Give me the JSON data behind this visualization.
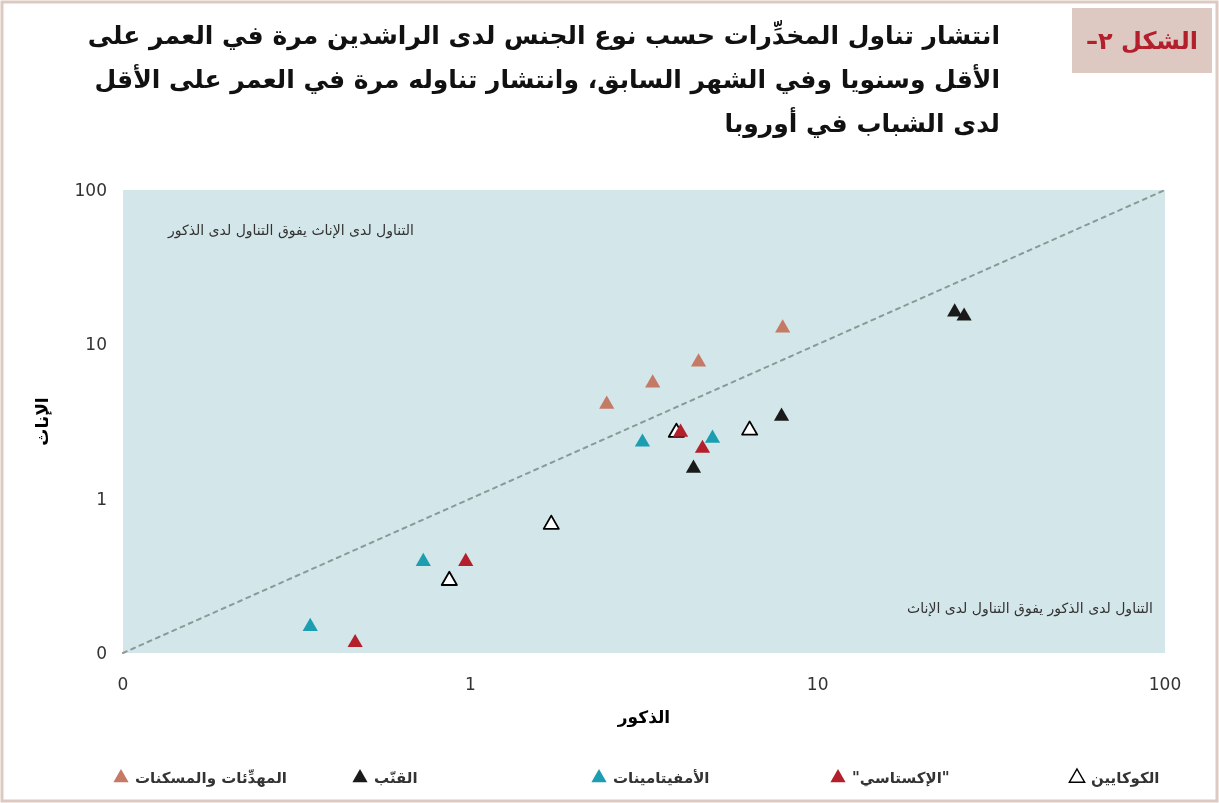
{
  "chart_data": {
    "type": "scatter",
    "title": "انتشار تناول المخدِّرات حسب نوع الجنس لدى الراشدين مرة في العمر على الأقل وسنويا وفي الشهر السابق، وانتشار تناوله مرة في العمر على الأقل لدى الشباب في أوروبا",
    "xlabel": "الذكور",
    "ylabel": "الإناث",
    "log": "xy",
    "marker": "triangle",
    "legend": "bottom",
    "grid": false,
    "xlim": [
      0.1,
      100
    ],
    "ylim": [
      0.1,
      100
    ],
    "xticks": [
      {
        "value": 0.1,
        "label": "0"
      },
      1,
      10,
      100
    ],
    "yticks": [
      {
        "value": 0.1,
        "label": "0"
      },
      1,
      10,
      100
    ],
    "annotations": [
      "الشكل ٢–",
      "التناول لدى الإناث يفوق التناول لدى الذكور",
      "التناول لدى الذكور يفوق التناول لدى الإناث"
    ],
    "series": [
      {
        "name": "المهدِّئات والمسكنات",
        "color": "#c47a64",
        "x": [
          2.47,
          3.35,
          4.54,
          7.93
        ],
        "values": [
          4.14,
          5.67,
          7.76,
          12.9
        ]
      },
      {
        "name": "القنّب",
        "color": "#1a1a1a",
        "x": [
          4.39,
          7.87,
          24.8,
          26.4
        ],
        "values": [
          1.59,
          3.46,
          16.4,
          15.4
        ]
      },
      {
        "name": "الأمفيتامينات",
        "color": "#1c9db0",
        "x": [
          0.346,
          0.732,
          3.13,
          4.98
        ],
        "values": [
          0.15,
          0.396,
          2.35,
          2.49
        ]
      },
      {
        "name": "\"الإكستاسي\"",
        "color": "#b3202c",
        "x": [
          0.466,
          0.97,
          4.03,
          4.66
        ],
        "values": [
          0.118,
          0.396,
          2.72,
          2.14
        ]
      },
      {
        "name": "الكوكايين",
        "color": "#ffffff",
        "x": [
          0.87,
          1.71,
          3.92,
          6.37
        ],
        "values": [
          0.298,
          0.689,
          2.72,
          2.81
        ]
      },
      {
        "type": "line",
        "color": "#8a9a96",
        "line_style": "dashed",
        "marker": "none",
        "x": [
          0.1,
          100
        ],
        "values": [
          0.1,
          100
        ]
      }
    ]
  }
}
